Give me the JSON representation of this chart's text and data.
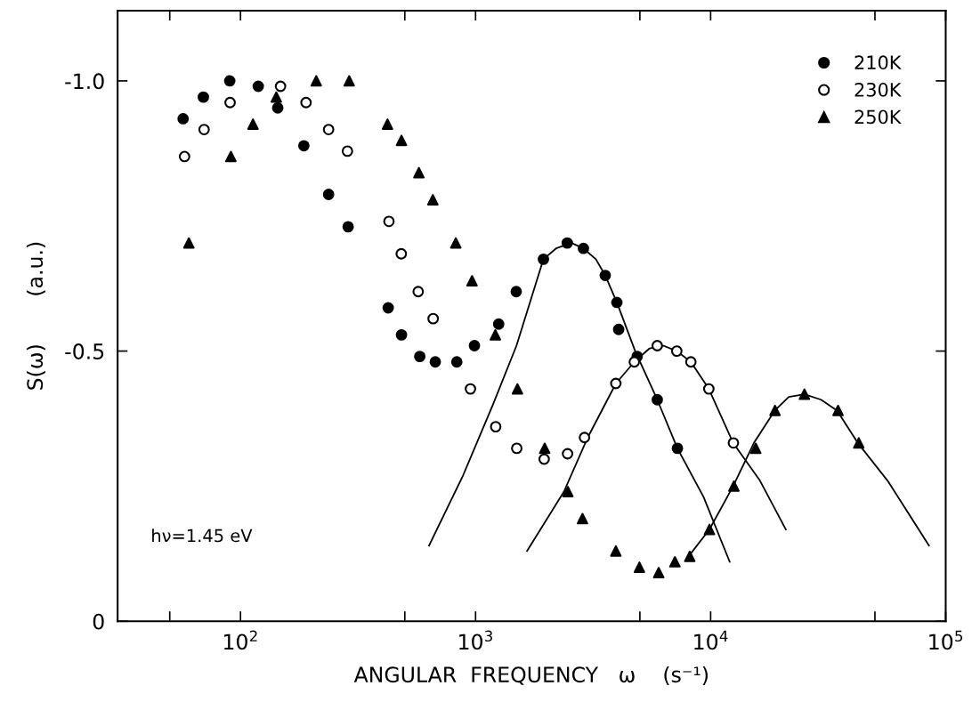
{
  "chart_data": {
    "type": "scatter",
    "xlabel": "ANGULAR  FREQUENCY   ω    (s⁻¹)",
    "ylabel": "S(ω)       (a.u.)",
    "annotations": [
      "hν=1.45 eV"
    ],
    "log": "x",
    "xlim": [
      30,
      100000
    ],
    "xticks": [
      {
        "value": 50,
        "label": null
      },
      {
        "value": 100,
        "label": "10$^{2}$"
      },
      {
        "value": 500,
        "label": null
      },
      {
        "value": 1000,
        "label": "10$^{3}$"
      },
      {
        "value": 5000,
        "label": null
      },
      {
        "value": 10000,
        "label": "10$^{4}$"
      },
      {
        "value": 50000,
        "label": null
      },
      {
        "value": 100000,
        "label": "10$^{5}$"
      }
    ],
    "ylim": [
      0,
      -1.13
    ],
    "yticks": [
      {
        "value": 0,
        "label": "0"
      },
      {
        "value": -0.5,
        "label": "-0.5"
      },
      {
        "value": -1.0,
        "label": "-1.0"
      }
    ],
    "grid": false,
    "legend": "top right",
    "series": [
      {
        "name": "210K",
        "color": "#000000",
        "marker": "circle",
        "x": [
          57,
          69.5,
          90,
          119,
          144,
          186,
          237,
          287,
          425,
          484,
          579,
          674,
          832,
          989,
          1254,
          1489,
          1944,
          2455,
          2877,
          3562,
          3991,
          4062,
          4869,
          5929,
          7223
        ],
        "values": [
          -0.93,
          -0.97,
          -1.0,
          -0.99,
          -0.95,
          -0.88,
          -0.79,
          -0.73,
          -0.58,
          -0.53,
          -0.49,
          -0.48,
          -0.48,
          -0.51,
          -0.55,
          -0.61,
          -0.67,
          -0.7,
          -0.69,
          -0.64,
          -0.59,
          -0.54,
          -0.49,
          -0.41,
          -0.32
        ]
      },
      {
        "name": "230K",
        "color": "#000000",
        "marker": "open circle",
        "x": [
          57.8,
          70,
          90.3,
          148,
          190,
          237,
          285,
          428,
          483,
          570,
          660,
          951,
          1218,
          1497,
          1958,
          2462,
          2906,
          3951,
          4735,
          5929,
          7178,
          8240,
          9825,
          12500
        ],
        "values": [
          -0.86,
          -0.91,
          -0.96,
          -0.99,
          -0.96,
          -0.91,
          -0.87,
          -0.74,
          -0.68,
          -0.61,
          -0.56,
          -0.43,
          -0.36,
          -0.32,
          -0.3,
          -0.31,
          -0.34,
          -0.44,
          -0.48,
          -0.51,
          -0.5,
          -0.48,
          -0.43,
          -0.33
        ]
      },
      {
        "name": "250K",
        "color": "#000000",
        "marker": "triangle",
        "x": [
          60.3,
          91,
          113,
          142,
          210,
          290,
          422,
          484,
          574,
          658,
          824,
          966,
          1214,
          1507,
          1968,
          2470,
          2850,
          3951,
          4977,
          6013,
          7047,
          8150,
          9890,
          12560,
          15560,
          18790,
          25060,
          34840,
          42680
        ],
        "values": [
          -0.7,
          -0.86,
          -0.92,
          -0.97,
          -1.0,
          -1.0,
          -0.92,
          -0.89,
          -0.83,
          -0.78,
          -0.7,
          -0.63,
          -0.53,
          -0.43,
          -0.32,
          -0.24,
          -0.19,
          -0.13,
          -0.1,
          -0.09,
          -0.11,
          -0.12,
          -0.17,
          -0.25,
          -0.32,
          -0.39,
          -0.42,
          -0.39,
          -0.33
        ]
      },
      {
        "type": "line",
        "color": "#000000",
        "marker": "none",
        "line_style": "solid",
        "x": [
          634,
          885,
          1183,
          1493,
          1944,
          2200,
          2559,
          2877,
          3250,
          3562,
          3991,
          4775,
          5929,
          7223,
          9333,
          12050
        ],
        "values": [
          -0.14,
          -0.27,
          -0.4,
          -0.51,
          -0.67,
          -0.69,
          -0.7,
          -0.69,
          -0.67,
          -0.64,
          -0.59,
          -0.5,
          -0.41,
          -0.32,
          -0.23,
          -0.11
        ]
      },
      {
        "type": "line",
        "color": "#000000",
        "marker": "none",
        "line_style": "solid",
        "x": [
          1656,
          2377,
          3000,
          3954,
          4735,
          5500,
          6295,
          7178,
          8240,
          9825,
          12470,
          16220,
          20890
        ],
        "values": [
          -0.13,
          -0.24,
          -0.34,
          -0.44,
          -0.48,
          -0.505,
          -0.51,
          -0.5,
          -0.48,
          -0.43,
          -0.33,
          -0.26,
          -0.17
        ]
      },
      {
        "type": "line",
        "color": "#000000",
        "marker": "none",
        "line_style": "solid",
        "x": [
          8054,
          9886,
          12470,
          15280,
          18750,
          21500,
          25060,
          29500,
          34510,
          42270,
          56620,
          84920
        ],
        "values": [
          -0.12,
          -0.17,
          -0.25,
          -0.33,
          -0.39,
          -0.415,
          -0.42,
          -0.41,
          -0.39,
          -0.33,
          -0.26,
          -0.14
        ]
      }
    ]
  }
}
